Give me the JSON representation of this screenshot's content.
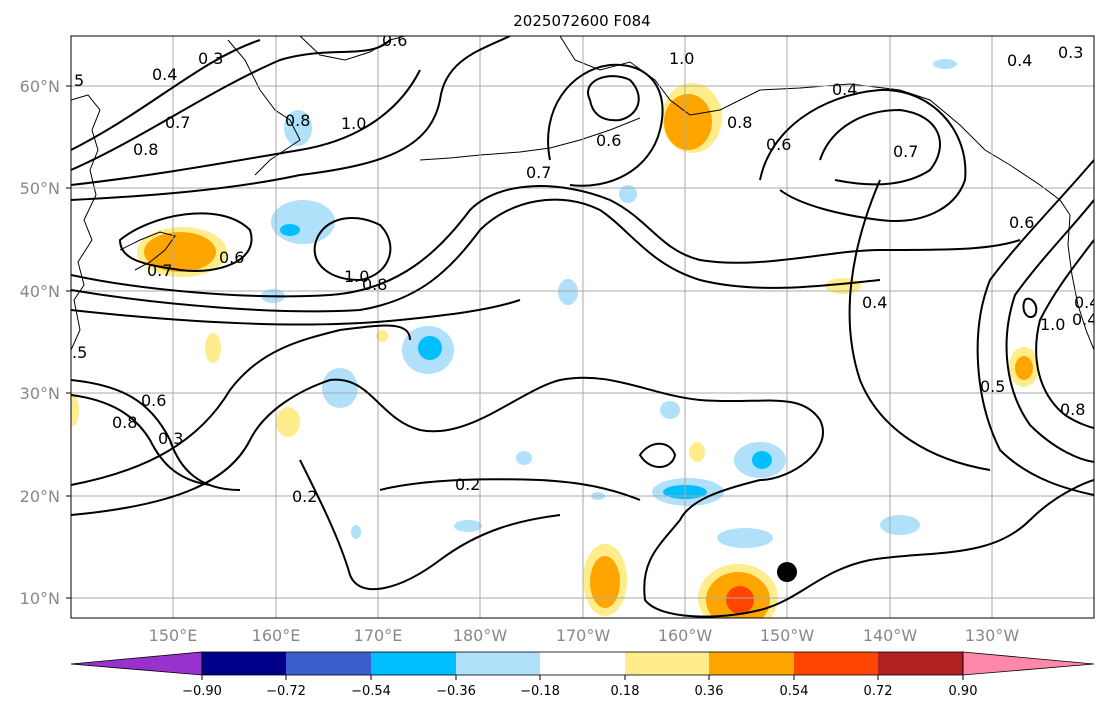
{
  "title": "2025072600 F084",
  "lat_labels": [
    "60°N",
    "50°N",
    "40°N",
    "30°N",
    "20°N",
    "10°N"
  ],
  "lon_labels": [
    "150°E",
    "160°E",
    "170°E",
    "180°W",
    "170°W",
    "160°W",
    "150°W",
    "140°W",
    "130°W"
  ],
  "colorbar": {
    "ticks": [
      "−0.90",
      "−0.72",
      "−0.54",
      "−0.36",
      "−0.18",
      "0.18",
      "0.36",
      "0.54",
      "0.72",
      "0.90"
    ],
    "colors": [
      "#9932cc",
      "#00008b",
      "#3a5fcd",
      "#00bfff",
      "#b0e0fa",
      "#ffffff",
      "#ffec8b",
      "#ffa500",
      "#ff4500",
      "#b22222",
      "#ff88aa"
    ]
  },
  "contour_labels": [
    "0.3",
    "0.6",
    "0.4",
    "0.7",
    "0.8",
    "5",
    "0.8",
    "1.0",
    "1.0",
    "0.6",
    "0.7",
    "0.8",
    "0.4",
    "0.6",
    "0.7",
    "0.4",
    "0.3",
    "0.6",
    "0.7",
    "0.6",
    "1.0",
    "0.8",
    "0.4",
    ".5",
    "0.8",
    "0.6",
    "0.3",
    "0.2",
    "0.2",
    "0.4",
    "0.5",
    "0.8",
    "1.0",
    "0.4"
  ],
  "colors": {
    "contour": "#000000",
    "grid": "#aaaaaa",
    "axis_text": "#888888"
  }
}
